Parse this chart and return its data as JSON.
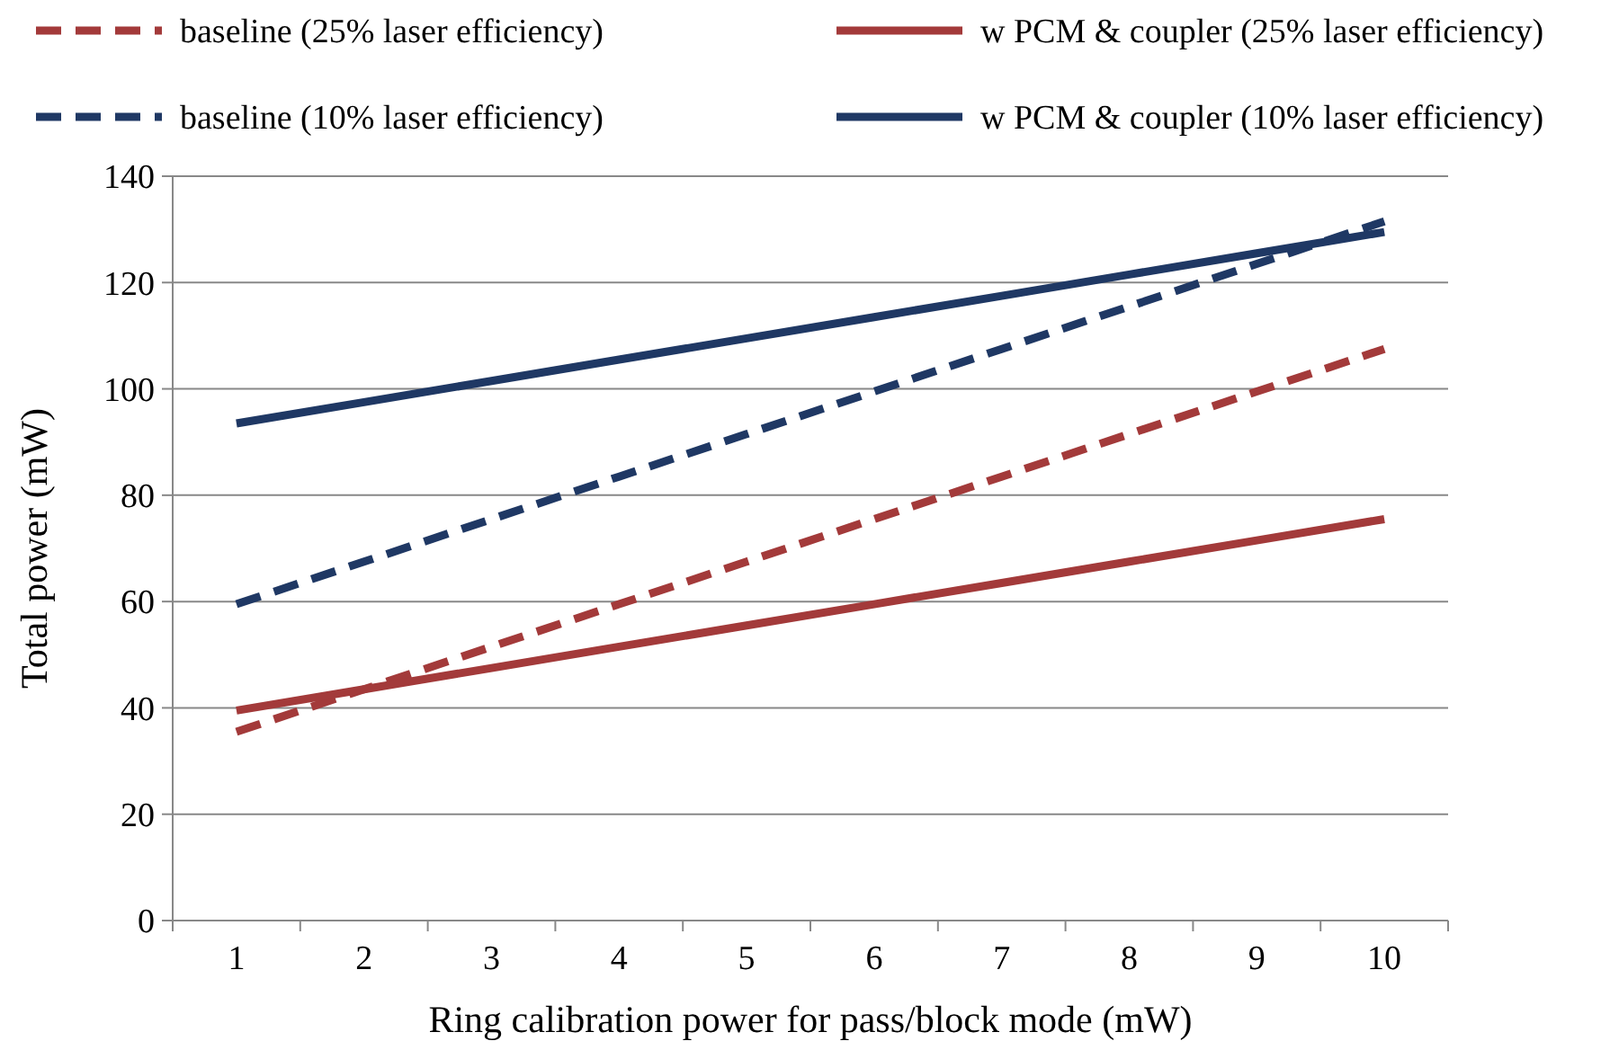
{
  "chart_data": {
    "type": "line",
    "xlabel": "Ring calibration power for pass/block mode (mW)",
    "ylabel": "Total power (mW)",
    "categories": [
      "1",
      "2",
      "3",
      "4",
      "5",
      "6",
      "7",
      "8",
      "9",
      "10"
    ],
    "ylim": [
      0,
      140
    ],
    "yticks": [
      0,
      20,
      40,
      60,
      80,
      100,
      120,
      140
    ],
    "grid": "y",
    "legend": "top",
    "marker": "none",
    "series": [
      {
        "name": "baseline (25% laser efficiency)",
        "color": "#a33a3a",
        "line_style": "dashed",
        "values": [
          35.5,
          43.5,
          51.5,
          59.5,
          67.5,
          75.5,
          83.5,
          91.5,
          99.5,
          107.5
        ]
      },
      {
        "name": "w PCM & coupler (25% laser efficiency)",
        "color": "#a33a3a",
        "line_style": "solid",
        "values": [
          39.5,
          43.5,
          47.5,
          51.5,
          55.5,
          59.5,
          63.5,
          67.5,
          71.5,
          75.5
        ]
      },
      {
        "name": "baseline (10% laser efficiency)",
        "color": "#1f3864",
        "line_style": "dashed",
        "values": [
          59.5,
          67.5,
          75.5,
          83.5,
          91.5,
          99.5,
          107.5,
          115.5,
          123.5,
          131.5
        ]
      },
      {
        "name": "w PCM & coupler (10% laser efficiency)",
        "color": "#1f3864",
        "line_style": "solid",
        "values": [
          93.5,
          97.5,
          101.5,
          105.5,
          109.5,
          113.5,
          117.5,
          121.5,
          125.5,
          129.5
        ]
      }
    ]
  }
}
